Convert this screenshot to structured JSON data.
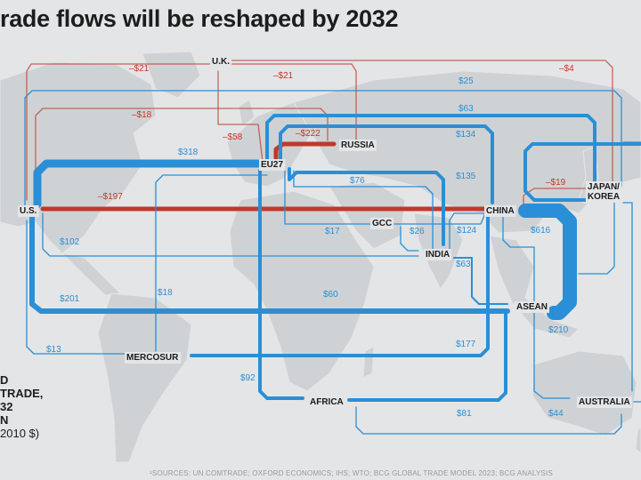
{
  "title": "rade flows will be reshaped by 2032",
  "legend": {
    "line1": "D",
    "line2": "TRADE,",
    "line3": "32",
    "line4": "N",
    "line5": "2010 $)"
  },
  "sources": "¹SOURCES: UN COMTRADE; OXFORD ECONOMICS; IHS; WTO; BCG GLOBAL TRADE MODEL 2023; BCG ANALYSIS",
  "colors": {
    "increase": "#2a8fd6",
    "decrease": "#c0392b",
    "land": "#cfd2d4",
    "ocean": "#e4e5e6"
  },
  "regions": [
    {
      "id": "uk",
      "label": "U.K."
    },
    {
      "id": "russia",
      "label": "RUSSIA"
    },
    {
      "id": "eu27",
      "label": "EU27"
    },
    {
      "id": "japan",
      "label": "JAPAN/\nKOREA"
    },
    {
      "id": "us",
      "label": "U.S."
    },
    {
      "id": "china",
      "label": "CHINA"
    },
    {
      "id": "gcc",
      "label": "GCC"
    },
    {
      "id": "india",
      "label": "INDIA"
    },
    {
      "id": "asean",
      "label": "ASEAN"
    },
    {
      "id": "mercosur",
      "label": "MERCOSUR"
    },
    {
      "id": "africa",
      "label": "AFRICA"
    },
    {
      "id": "australia",
      "label": "AUSTRALIA"
    }
  ],
  "flow_values": [
    {
      "id": "v1",
      "text": "–$21",
      "sign": "neg"
    },
    {
      "id": "v2",
      "text": "–$21",
      "sign": "neg"
    },
    {
      "id": "v3",
      "text": "–$4",
      "sign": "neg"
    },
    {
      "id": "v4",
      "text": "$25",
      "sign": "pos"
    },
    {
      "id": "v5",
      "text": "–$18",
      "sign": "neg"
    },
    {
      "id": "v6",
      "text": "$63",
      "sign": "pos"
    },
    {
      "id": "v7",
      "text": "–$58",
      "sign": "neg"
    },
    {
      "id": "v8",
      "text": "–$222",
      "sign": "neg"
    },
    {
      "id": "v9",
      "text": "$134",
      "sign": "pos"
    },
    {
      "id": "v10",
      "text": "$318",
      "sign": "pos"
    },
    {
      "id": "v11",
      "text": "$76",
      "sign": "pos"
    },
    {
      "id": "v12",
      "text": "$135",
      "sign": "pos"
    },
    {
      "id": "v13",
      "text": "–$19",
      "sign": "neg"
    },
    {
      "id": "v14",
      "text": "–$197",
      "sign": "neg"
    },
    {
      "id": "v15",
      "text": "$17",
      "sign": "pos"
    },
    {
      "id": "v16",
      "text": "$26",
      "sign": "pos"
    },
    {
      "id": "v17",
      "text": "$124",
      "sign": "pos"
    },
    {
      "id": "v18",
      "text": "$616",
      "sign": "pos"
    },
    {
      "id": "v19",
      "text": "$102",
      "sign": "pos"
    },
    {
      "id": "v20",
      "text": "$63",
      "sign": "pos"
    },
    {
      "id": "v21",
      "text": "$18",
      "sign": "pos"
    },
    {
      "id": "v22",
      "text": "$60",
      "sign": "pos"
    },
    {
      "id": "v23",
      "text": "$201",
      "sign": "pos"
    },
    {
      "id": "v24",
      "text": "$210",
      "sign": "pos"
    },
    {
      "id": "v25",
      "text": "$13",
      "sign": "pos"
    },
    {
      "id": "v26",
      "text": "$177",
      "sign": "pos"
    },
    {
      "id": "v27",
      "text": "$92",
      "sign": "pos"
    },
    {
      "id": "v28",
      "text": "$81",
      "sign": "pos"
    },
    {
      "id": "v29",
      "text": "$44",
      "sign": "pos"
    }
  ]
}
